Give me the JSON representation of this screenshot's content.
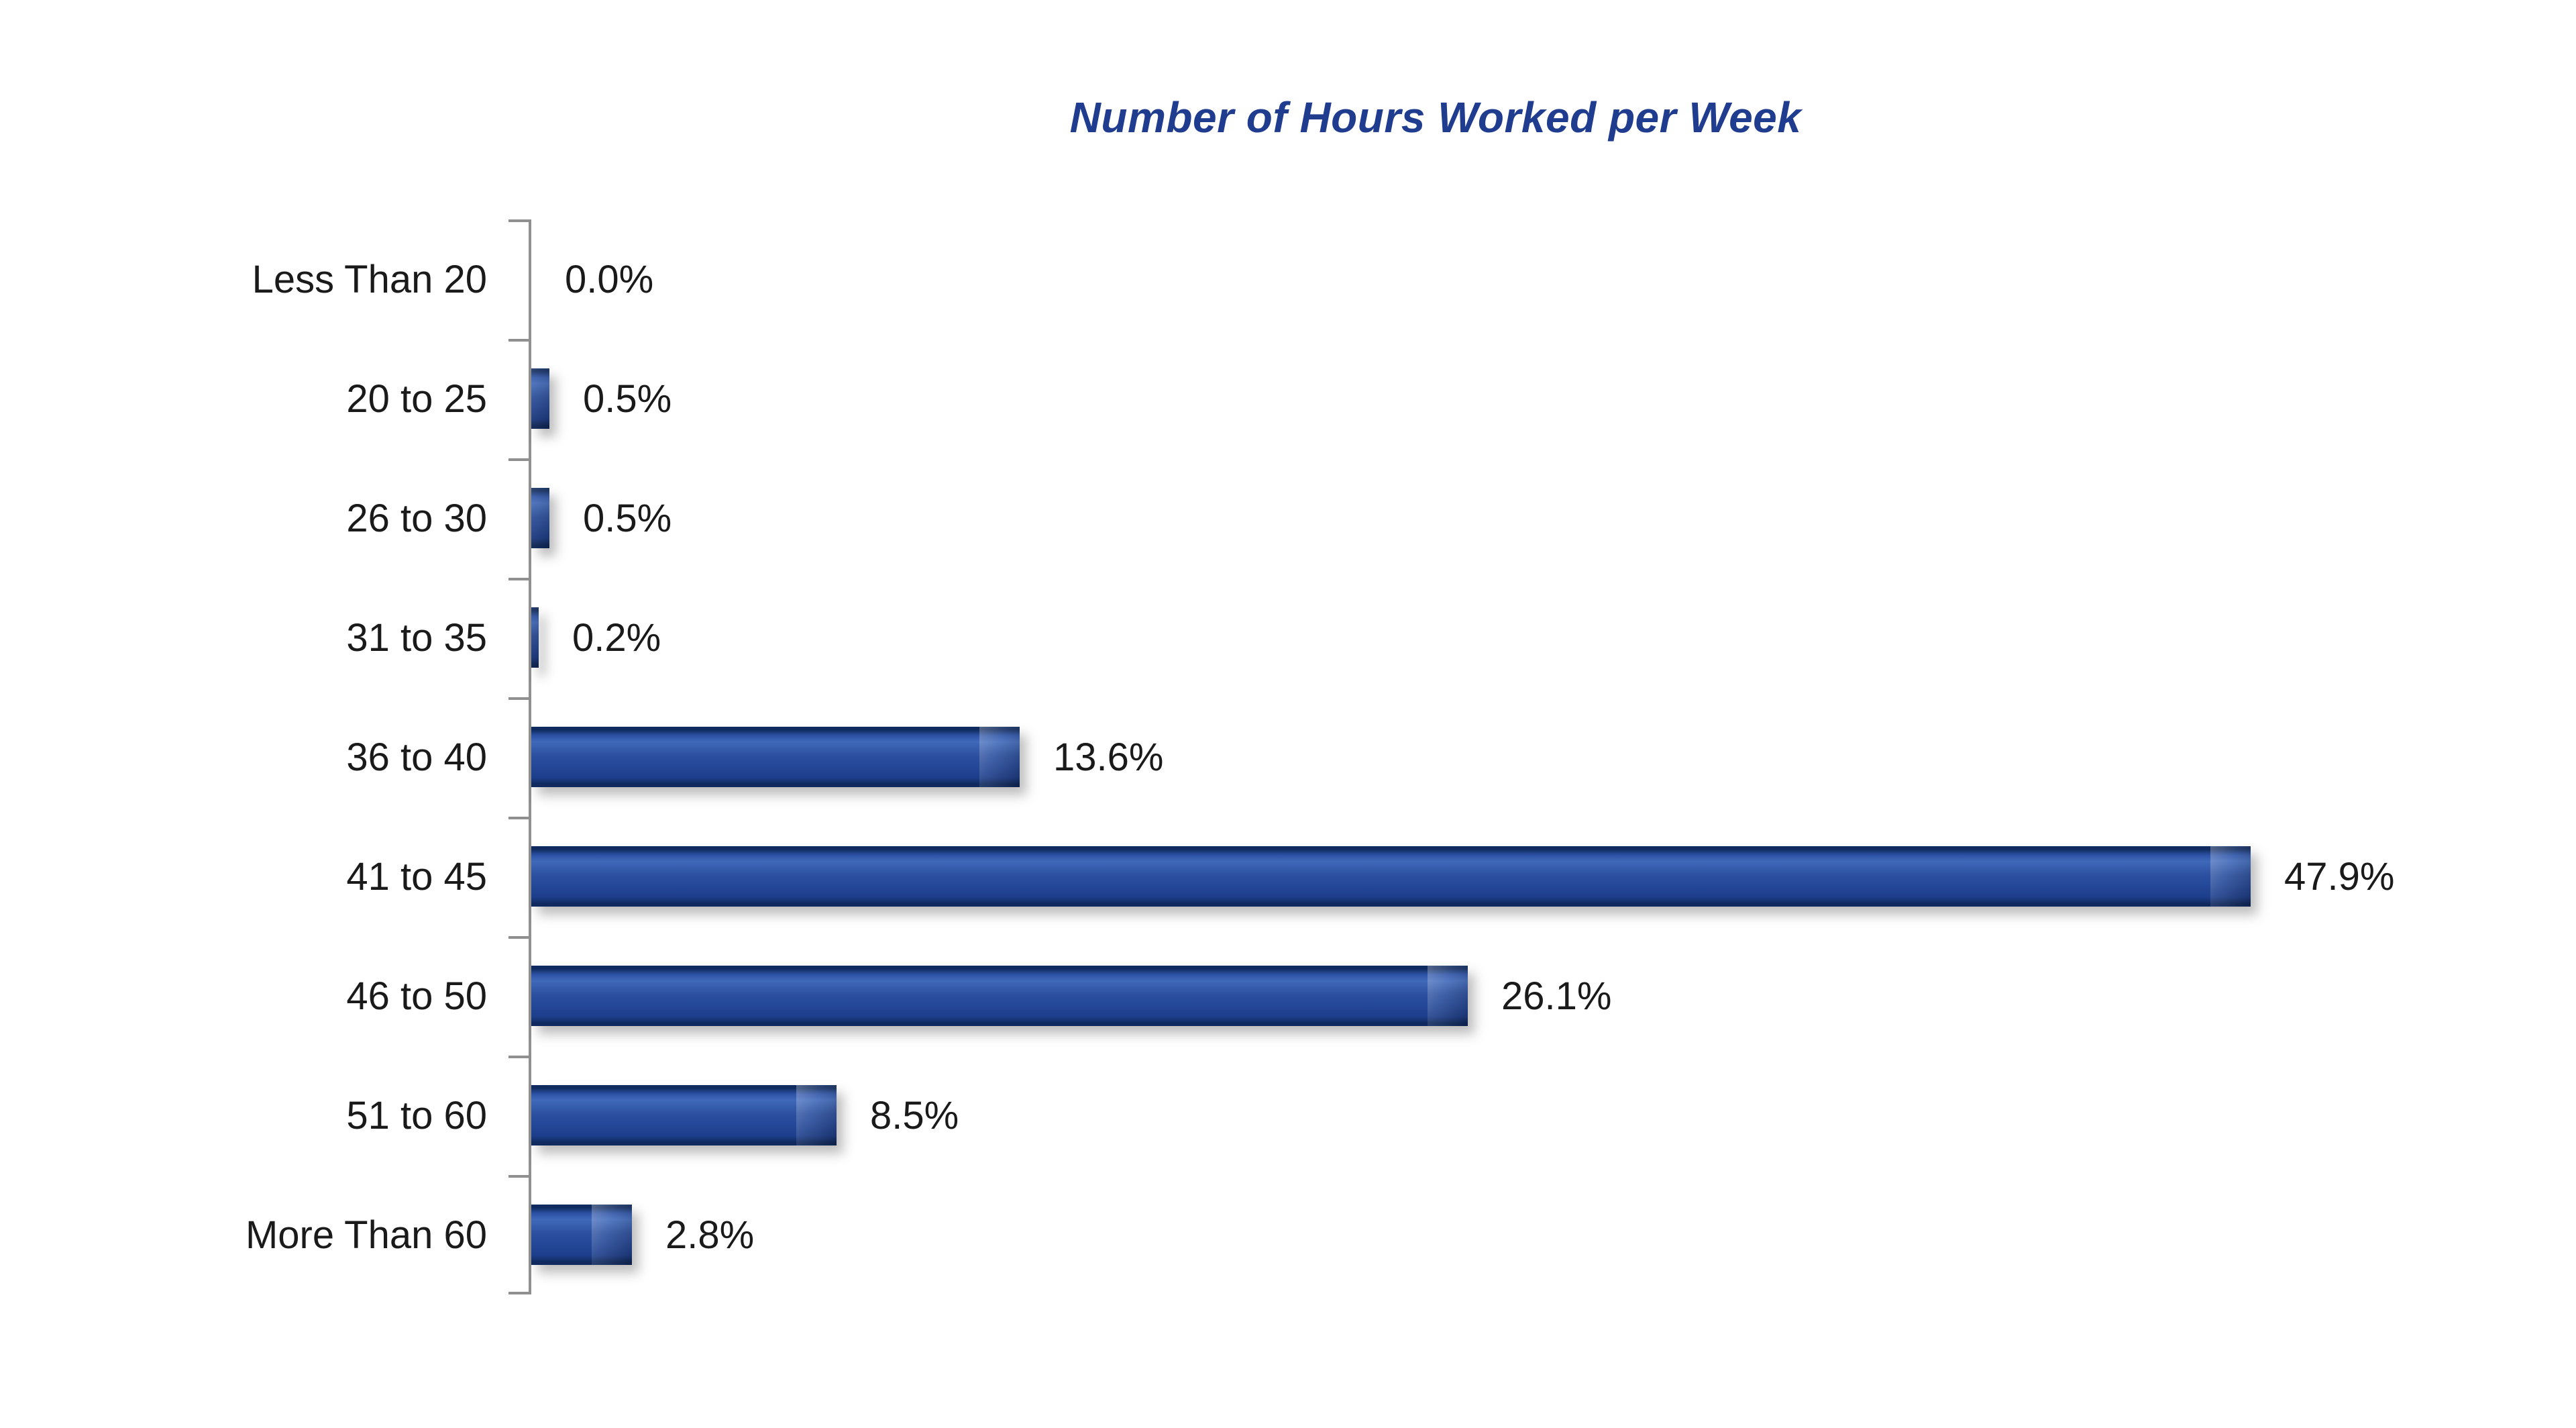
{
  "chart_data": {
    "type": "bar",
    "orientation": "horizontal",
    "title": "Number of Hours Worked per Week",
    "categories": [
      "Less Than 20",
      "20 to 25",
      "26 to 30",
      "31 to 35",
      "36 to 40",
      "41 to 45",
      "46 to 50",
      "51 to 60",
      "More Than 60"
    ],
    "values": [
      0.0,
      0.5,
      0.5,
      0.2,
      13.6,
      47.9,
      26.1,
      8.5,
      2.8
    ],
    "value_labels": [
      "0.0%",
      "0.5%",
      "0.5%",
      "0.2%",
      "13.6%",
      "47.9%",
      "26.1%",
      "8.5%",
      "2.8%"
    ],
    "xlabel": "",
    "ylabel": "",
    "xlim": [
      0,
      55
    ],
    "grid": false,
    "legend": null,
    "data_labels_position": "outside-end",
    "colors": {
      "bar_fill": "#2c509f",
      "bar_edge_dark": "#102a60",
      "bar_highlight": "#4069ba",
      "title": "#1f3c8f",
      "axis_line": "#909090",
      "label_text": "#1a1a1a",
      "background": "#ffffff"
    }
  }
}
